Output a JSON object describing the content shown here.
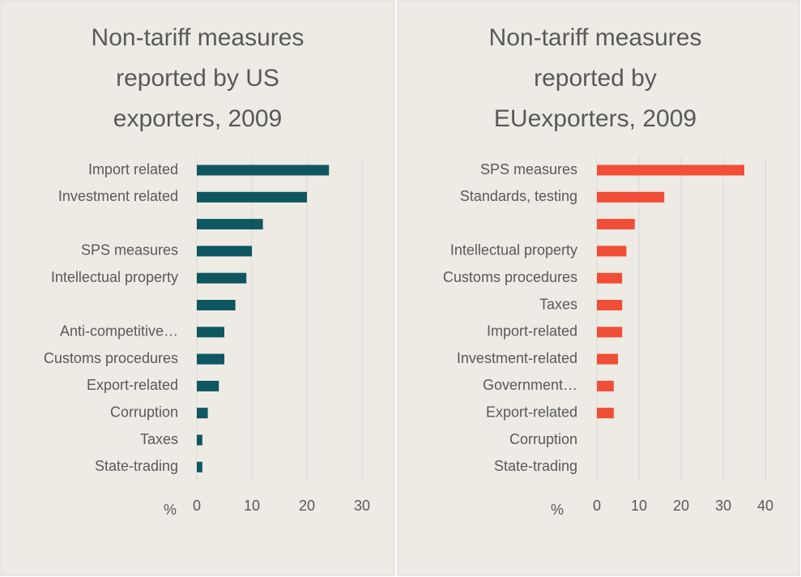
{
  "chart_data": [
    {
      "type": "bar",
      "orientation": "horizontal",
      "title": "Non-tariff measures reported by US exporters, 2009",
      "x_axis_label": "%",
      "categories": [
        "Import related",
        "Investment related",
        null,
        "SPS measures",
        "Intellectual property",
        null,
        "Anti-competitive…",
        "Customs procedures",
        "Export-related",
        "Corruption",
        "Taxes",
        "State-trading"
      ],
      "values": [
        24,
        20,
        12,
        10,
        9,
        7,
        5,
        5,
        4,
        2,
        1,
        1
      ],
      "color": "#0e5761",
      "xlim": [
        0,
        30
      ],
      "xticks": [
        0,
        10,
        20,
        30
      ],
      "grid": true
    },
    {
      "type": "bar",
      "orientation": "horizontal",
      "title": "Non-tariff measures reported by EUexporters, 2009",
      "x_axis_label": "%",
      "categories": [
        "SPS measures",
        "Standards, testing",
        null,
        "Intellectual property",
        "Customs procedures",
        "Taxes",
        "Import-related",
        "Investment-related",
        "Government…",
        "Export-related",
        "Corruption",
        "State-trading"
      ],
      "values": [
        35,
        16,
        9,
        7,
        6,
        6,
        6,
        5,
        4,
        4,
        0,
        0
      ],
      "color": "#f04e37",
      "xlim": [
        0,
        40
      ],
      "xticks": [
        0,
        10,
        20,
        30,
        40
      ],
      "grid": true
    }
  ]
}
